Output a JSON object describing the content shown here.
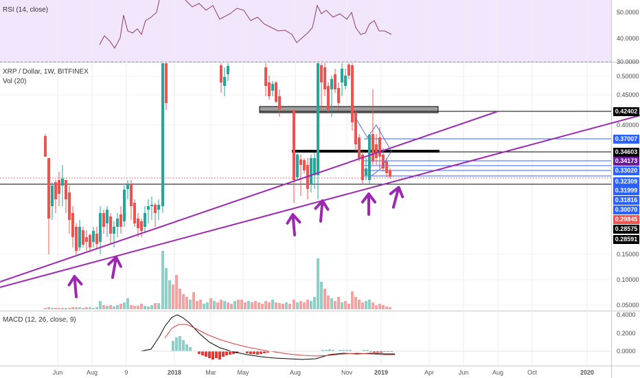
{
  "panels": {
    "rsi_label": "RSI (14, close)",
    "main_title": "XRP / Dollar, 1W, BITFINEX",
    "vol_label": "Vol (20)",
    "macd_label": "MACD (12, 26, close, 9)"
  },
  "colors": {
    "up": "#26a69a",
    "down": "#ef5350",
    "vol_up": "#8ecfc7",
    "vol_down": "#f3a3a1",
    "trendline": "#9c27b0",
    "arrow": "#9c27b0",
    "rsi_bg": "#f1e6fb",
    "rsi_line": "#8e3b6f",
    "macd_line": "#000000",
    "signal_line": "#e53935",
    "blue_level": "#2962ff"
  },
  "chart_data": [
    {
      "type": "candlestick",
      "title": "XRP / Dollar, 1W, BITFINEX",
      "y_axis_labels": [
        "0.50000",
        "0.45000",
        "0.40000",
        "0.15000",
        "0.10000",
        "0.05000"
      ],
      "price_tags": [
        {
          "label": "0.42402",
          "style": "black"
        },
        {
          "label": "0.37007",
          "style": "blue"
        },
        {
          "label": "0.34603",
          "style": "black"
        },
        {
          "label": "0.34173",
          "style": "purple"
        },
        {
          "label": "0.33020",
          "style": "blue"
        },
        {
          "label": "0.32309",
          "style": "blue"
        },
        {
          "label": "0.31999",
          "style": "blue"
        },
        {
          "label": "0.31816",
          "style": "blue"
        },
        {
          "label": "0.30070",
          "style": "blue"
        },
        {
          "label": "0.29845",
          "style": "red"
        },
        {
          "label": "0.28575",
          "style": "black"
        },
        {
          "label": "0.28591",
          "style": "black"
        }
      ],
      "x_labels": [
        "Jun",
        "Aug",
        "9",
        "2018",
        "Mar",
        "May",
        "Aug",
        "Nov",
        "2019",
        "Apr",
        "Jun",
        "Aug",
        "Oct",
        "2020"
      ]
    },
    {
      "type": "line",
      "title": "RSI (14, close)",
      "y_axis_labels": [
        "50.0000",
        "40.0000",
        "30.0000"
      ]
    },
    {
      "type": "line",
      "title": "MACD (12, 26, close, 9)",
      "y_axis_labels": [
        "0.4000",
        "0.2000",
        "0.0000"
      ]
    }
  ],
  "arrows_count": 6
}
